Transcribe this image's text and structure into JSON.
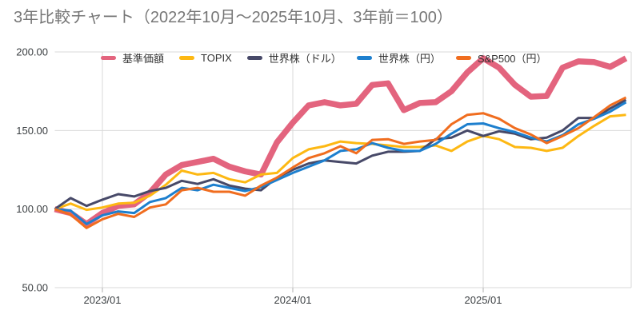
{
  "title": "3年比較チャート（2022年10月～2025年10月、3年前＝100）",
  "chart_data": {
    "type": "line",
    "title": "3年比較チャート（2022年10月～2025年10月、3年前＝100）",
    "xlabel": "",
    "ylabel": "",
    "ylim": [
      50,
      200
    ],
    "grid": true,
    "legend_position": "top",
    "x": [
      "2022/10",
      "2022/11",
      "2022/12",
      "2023/01",
      "2023/02",
      "2023/03",
      "2023/04",
      "2023/05",
      "2023/06",
      "2023/07",
      "2023/08",
      "2023/09",
      "2023/10",
      "2023/11",
      "2023/12",
      "2024/01",
      "2024/02",
      "2024/03",
      "2024/04",
      "2024/05",
      "2024/06",
      "2024/07",
      "2024/08",
      "2024/09",
      "2024/10",
      "2024/11",
      "2024/12",
      "2025/01",
      "2025/02",
      "2025/03",
      "2025/04",
      "2025/05",
      "2025/06",
      "2025/07",
      "2025/08",
      "2025/09",
      "2025/10"
    ],
    "x_ticks": [
      {
        "label": "2023/01",
        "index": 3
      },
      {
        "label": "2024/01",
        "index": 15
      },
      {
        "label": "2025/01",
        "index": 27
      }
    ],
    "y_ticks": [
      {
        "label": "200.00",
        "value": 200
      },
      {
        "label": "150.00",
        "value": 150
      },
      {
        "label": "100.00",
        "value": 100
      },
      {
        "label": "50.00",
        "value": 50
      }
    ],
    "series": [
      {
        "name": "基準価額",
        "color": "#e3647e",
        "width": 7.5,
        "values": [
          100,
          97.5,
          90.5,
          97.5,
          102,
          103,
          110.5,
          122,
          128,
          130,
          132,
          127,
          124,
          122,
          142.5,
          155,
          166,
          168,
          166,
          167,
          179,
          180,
          163,
          167.5,
          168,
          175,
          187,
          196,
          190,
          179,
          171.5,
          172,
          190,
          194,
          193.5,
          190.5,
          196
        ]
      },
      {
        "name": "TOPIX",
        "color": "#fdb813",
        "width": 3,
        "values": [
          100,
          103.5,
          99.5,
          101,
          103.5,
          104,
          108.5,
          115.5,
          124.5,
          122,
          123,
          119,
          117,
          122,
          123,
          132.5,
          138,
          140,
          143,
          142,
          141.5,
          140.5,
          139.5,
          139.5,
          140.5,
          137,
          143,
          146.5,
          144.5,
          139.5,
          139,
          137,
          139,
          146.5,
          153,
          159,
          160
        ]
      },
      {
        "name": "世界株（ドル）",
        "color": "#474968",
        "width": 3,
        "values": [
          100,
          107,
          102,
          106,
          109.5,
          108,
          111.5,
          113.5,
          118,
          116,
          119,
          115,
          113,
          112,
          120,
          125,
          129,
          131,
          130,
          129,
          134,
          136.5,
          136.5,
          137,
          144.5,
          145.5,
          150,
          146.5,
          149.5,
          148,
          144.5,
          145.5,
          150,
          158,
          158,
          164,
          169.5
        ]
      },
      {
        "name": "世界株（円）",
        "color": "#1d7fce",
        "width": 3,
        "values": [
          100,
          99,
          90.5,
          96,
          98.5,
          97.5,
          104.5,
          107,
          113.5,
          112,
          115.5,
          113.5,
          111.5,
          114,
          118.5,
          123,
          127,
          131,
          137,
          138,
          142,
          139,
          137,
          137,
          141.5,
          148,
          154,
          154.5,
          151.5,
          149,
          145.5,
          143,
          147,
          154,
          157.5,
          162,
          168
        ]
      },
      {
        "name": "S&P500（円）",
        "color": "#f06d1f",
        "width": 3,
        "values": [
          100,
          96.5,
          88,
          93.5,
          97,
          95,
          101,
          103,
          112,
          113.5,
          111,
          111,
          108.5,
          115,
          120,
          126.5,
          132.5,
          135.5,
          140,
          135.5,
          144,
          144.5,
          141.5,
          143,
          144,
          154,
          160,
          161,
          157.5,
          151.5,
          147.5,
          142,
          146.5,
          151.5,
          158.5,
          166,
          171
        ]
      }
    ]
  },
  "style": {
    "gridline_color": "#dadada",
    "tick_mark_color": "#b0b0b0",
    "axis_text_color": "#3c4043",
    "title_color": "#767676",
    "background": "#ffffff"
  }
}
